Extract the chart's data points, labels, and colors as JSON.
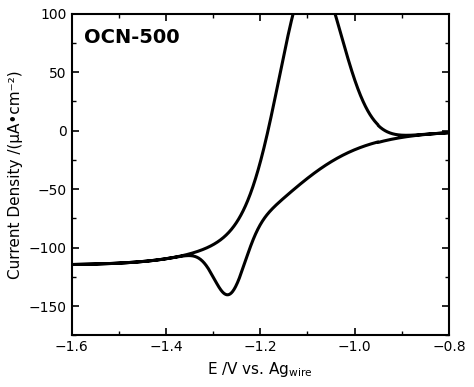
{
  "title": "OCN-500",
  "xlabel": "E /V vs. Ag$_{\\mathrm{wire}}$",
  "ylabel": "Current Density /(μA•cm⁻²)",
  "xlim": [
    -1.6,
    -0.8
  ],
  "ylim": [
    -175,
    100
  ],
  "xticks": [
    -1.6,
    -1.4,
    -1.2,
    -1.0,
    -0.8
  ],
  "yticks": [
    -150,
    -100,
    -50,
    0,
    50,
    100
  ],
  "line_color": "#000000",
  "line_width": 2.2,
  "background_color": "#ffffff",
  "title_fontsize": 14,
  "label_fontsize": 11,
  "tick_fontsize": 10
}
